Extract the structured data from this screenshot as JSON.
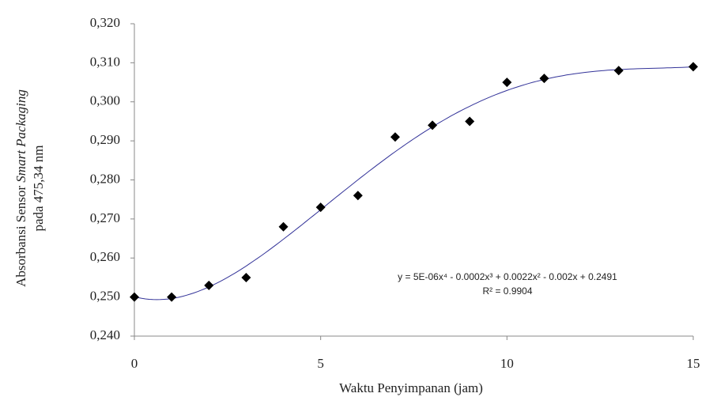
{
  "chart_data": {
    "type": "scatter",
    "x_label": "Waktu Penyimpanan (jam)",
    "y_label_parts": [
      "Absorbansi Sensor ",
      "Smart Packaging",
      "pada 475,34 nm"
    ],
    "x": [
      0,
      1,
      2,
      3,
      4,
      5,
      6,
      7,
      8,
      9,
      10,
      11,
      13,
      15
    ],
    "series": [
      {
        "color": "#000000",
        "values": [
          0.25,
          0.25,
          0.253,
          0.255,
          0.268,
          0.273,
          0.276,
          0.291,
          0.294,
          0.295,
          0.305,
          0.306,
          0.308,
          0.309
        ]
      }
    ],
    "trendline": {
      "degree": 4,
      "equation": "y = 5E-06x⁴ - 0.0002x³ + 0.0022x² - 0.002x + 0.2491",
      "r_squared": "R² = 0.9904",
      "color": "#333399"
    },
    "xlim": [
      0,
      15
    ],
    "xticks": [
      0,
      5,
      10,
      15
    ],
    "ylim": [
      0.24,
      0.32
    ],
    "yticks": [
      {
        "value": 0.24,
        "label": "0,240"
      },
      {
        "value": 0.25,
        "label": "0,250"
      },
      {
        "value": 0.26,
        "label": "0,260"
      },
      {
        "value": 0.27,
        "label": "0,270"
      },
      {
        "value": 0.28,
        "label": "0,280"
      },
      {
        "value": 0.29,
        "label": "0,290"
      },
      {
        "value": 0.3,
        "label": "0,300"
      },
      {
        "value": 0.31,
        "label": "0,310"
      },
      {
        "value": 0.32,
        "label": "0,320"
      }
    ]
  }
}
